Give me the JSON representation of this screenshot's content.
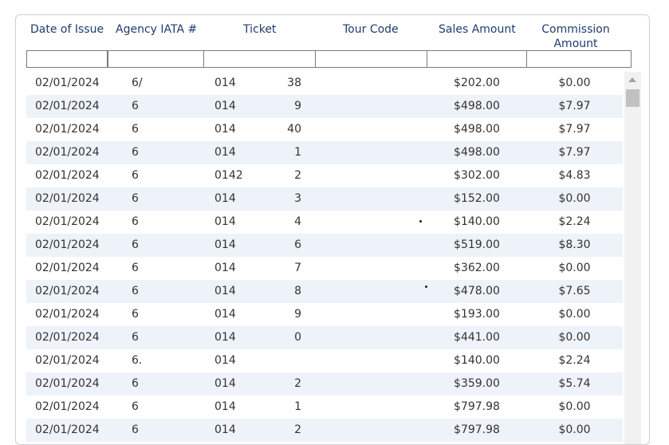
{
  "columns": {
    "date_of_issue": "Date of Issue",
    "agency_iata": "Agency IATA #",
    "ticket": "Ticket",
    "tour_code": "Tour Code",
    "sales_amount": "Sales Amount",
    "commission_line1": "Commission",
    "commission_line2": "Amount"
  },
  "filters": {
    "date_of_issue": "",
    "agency_iata": "",
    "ticket": "",
    "tour_code": "",
    "sales_amount": "",
    "commission": ""
  },
  "rows": [
    {
      "date": "02/01/2024",
      "agency": "6/",
      "ticket_left": "014",
      "ticket_right": "38",
      "tour": "",
      "sales": "$202.00",
      "commission": "$0.00"
    },
    {
      "date": "02/01/2024",
      "agency": "6",
      "ticket_left": "014",
      "ticket_right": "9",
      "tour": "",
      "sales": "$498.00",
      "commission": "$7.97"
    },
    {
      "date": "02/01/2024",
      "agency": "6",
      "ticket_left": "014",
      "ticket_right": "40",
      "tour": "",
      "sales": "$498.00",
      "commission": "$7.97"
    },
    {
      "date": "02/01/2024",
      "agency": "6",
      "ticket_left": "014",
      "ticket_right": "1",
      "tour": "",
      "sales": "$498.00",
      "commission": "$7.97"
    },
    {
      "date": "02/01/2024",
      "agency": "6",
      "ticket_left": "0142",
      "ticket_right": "2",
      "tour": "",
      "sales": "$302.00",
      "commission": "$4.83"
    },
    {
      "date": "02/01/2024",
      "agency": "6",
      "ticket_left": "014",
      "ticket_right": "3",
      "tour": "",
      "sales": "$152.00",
      "commission": "$0.00"
    },
    {
      "date": "02/01/2024",
      "agency": "6",
      "ticket_left": "014",
      "ticket_right": "4",
      "tour": "",
      "sales": "$140.00",
      "commission": "$2.24"
    },
    {
      "date": "02/01/2024",
      "agency": "6",
      "ticket_left": "014",
      "ticket_right": "6",
      "tour": "",
      "sales": "$519.00",
      "commission": "$8.30"
    },
    {
      "date": "02/01/2024",
      "agency": "6",
      "ticket_left": "014",
      "ticket_right": "7",
      "tour": "",
      "sales": "$362.00",
      "commission": "$0.00"
    },
    {
      "date": "02/01/2024",
      "agency": "6",
      "ticket_left": "014",
      "ticket_right": "8",
      "tour": "",
      "sales": "$478.00",
      "commission": "$7.65"
    },
    {
      "date": "02/01/2024",
      "agency": "6",
      "ticket_left": "014",
      "ticket_right": "9",
      "tour": "",
      "sales": "$193.00",
      "commission": "$0.00"
    },
    {
      "date": "02/01/2024",
      "agency": "6",
      "ticket_left": "014",
      "ticket_right": "0",
      "tour": "",
      "sales": "$441.00",
      "commission": "$0.00"
    },
    {
      "date": "02/01/2024",
      "agency": "6.",
      "ticket_left": "014",
      "ticket_right": "",
      "tour": "",
      "sales": "$140.00",
      "commission": "$2.24"
    },
    {
      "date": "02/01/2024",
      "agency": "6",
      "ticket_left": "014",
      "ticket_right": "2",
      "tour": "",
      "sales": "$359.00",
      "commission": "$5.74"
    },
    {
      "date": "02/01/2024",
      "agency": "6",
      "ticket_left": "014",
      "ticket_right": "1",
      "tour": "",
      "sales": "$797.98",
      "commission": "$0.00"
    },
    {
      "date": "02/01/2024",
      "agency": "6",
      "ticket_left": "014",
      "ticket_right": "2",
      "tour": "",
      "sales": "$797.98",
      "commission": "$0.00"
    }
  ],
  "scrollbar": {
    "up_icon": "scroll-up-arrow-icon"
  }
}
